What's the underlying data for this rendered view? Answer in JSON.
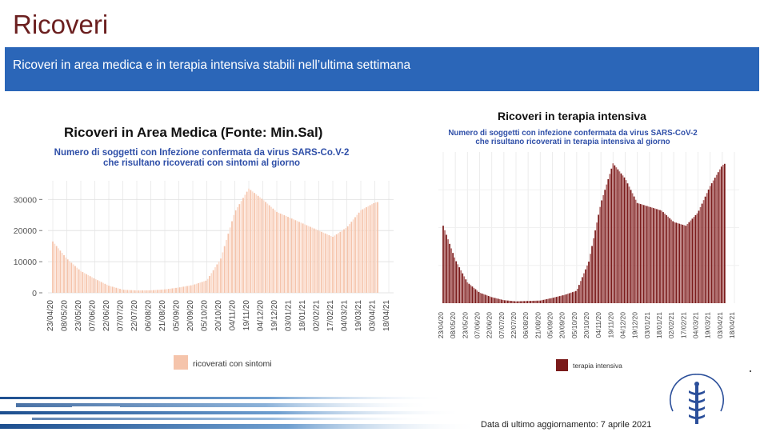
{
  "slide": {
    "title": "Ricoveri",
    "banner": "Ricoveri in area medica e in terapia intensiva stabili nell’ultima settimana",
    "footer": "Data di ultimo aggiornamento: 7 aprile 2021",
    "colors": {
      "title": "#6b1f1f",
      "banner": "#2b66b8",
      "medica": "#f5c4ab",
      "intensiva": "#7a1a1a",
      "subtitle": "#2f4fa8"
    }
  },
  "chart_data": [
    {
      "type": "bar",
      "title": "Ricoveri in Area Medica (Fonte: Min.Sal)",
      "subtitle": [
        "Numero di soggetti con Infezione confermata da virus SARS-Co.V-2",
        "che risultano ricoverati con sintomi al giorno"
      ],
      "xlabel": "",
      "ylabel": "",
      "ylim": [
        0,
        36000
      ],
      "yticks": [
        0,
        10000,
        20000,
        30000
      ],
      "ytick_labels": [
        "0",
        "10000",
        "20000",
        "30000"
      ],
      "xtick_labels": [
        "23/04/20",
        "08/05/20",
        "23/05/20",
        "07/06/20",
        "22/06/20",
        "07/07/20",
        "22/07/20",
        "06/08/20",
        "21/08/20",
        "05/09/20",
        "20/09/20",
        "05/10/20",
        "20/10/20",
        "04/11/20",
        "19/11/20",
        "04/12/20",
        "19/12/20",
        "03/01/21",
        "18/01/21",
        "02/02/21",
        "17/02/21",
        "04/03/21",
        "19/03/21",
        "03/04/21",
        "18/04/21"
      ],
      "x_range": [
        "2020-04-23",
        "2021-04-18"
      ],
      "series": [
        {
          "name": "ricoverati con sintomi",
          "color": "#f5c4ab",
          "dates": [
            "2020-04-23",
            "2020-05-08",
            "2020-05-23",
            "2020-06-07",
            "2020-06-22",
            "2020-07-07",
            "2020-07-22",
            "2020-08-06",
            "2020-08-21",
            "2020-09-05",
            "2020-09-20",
            "2020-10-05",
            "2020-10-20",
            "2020-11-04",
            "2020-11-19",
            "2020-12-04",
            "2020-12-19",
            "2021-01-03",
            "2021-01-18",
            "2021-02-02",
            "2021-02-17",
            "2021-03-04",
            "2021-03-19",
            "2021-04-03",
            "2021-04-07"
          ],
          "values": [
            16500,
            11000,
            7000,
            4500,
            2300,
            1000,
            750,
            800,
            1100,
            1700,
            2500,
            4000,
            11000,
            26000,
            33500,
            30000,
            26000,
            24000,
            22000,
            20000,
            18000,
            21000,
            26500,
            29000,
            29200
          ]
        }
      ],
      "legend": "bottom"
    },
    {
      "type": "bar",
      "title": "Ricoveri in terapia intensiva",
      "subtitle": [
        "Numero di soggetti con infezione confermata da virus SARS-CoV-2",
        "che risultano ricoverati in terapia intensiva al giorno"
      ],
      "xlabel": "",
      "ylabel": "",
      "ylim": [
        0,
        4000
      ],
      "xtick_labels": [
        "23/04/20",
        "08/05/20",
        "23/05/20",
        "07/06/20",
        "22/06/20",
        "07/07/20",
        "22/07/20",
        "06/08/20",
        "21/08/20",
        "05/09/20",
        "20/09/20",
        "05/10/20",
        "20/10/20",
        "04/11/20",
        "19/11/20",
        "04/12/20",
        "19/12/20",
        "03/01/21",
        "18/01/21",
        "02/02/21",
        "17/02/21",
        "04/03/21",
        "19/03/21",
        "03/04/21",
        "18/04/21"
      ],
      "x_range": [
        "2020-04-23",
        "2021-04-18"
      ],
      "series": [
        {
          "name": "terapia intensiva",
          "color": "#7a1a1a",
          "dates": [
            "2020-04-23",
            "2020-05-08",
            "2020-05-23",
            "2020-06-07",
            "2020-06-22",
            "2020-07-07",
            "2020-07-22",
            "2020-08-06",
            "2020-08-21",
            "2020-09-05",
            "2020-09-20",
            "2020-10-05",
            "2020-10-20",
            "2020-11-04",
            "2020-11-19",
            "2020-12-04",
            "2020-12-19",
            "2021-01-03",
            "2021-01-18",
            "2021-02-02",
            "2021-02-17",
            "2021-03-04",
            "2021-03-19",
            "2021-04-03",
            "2021-04-07"
          ],
          "values": [
            2050,
            1150,
            550,
            280,
            160,
            80,
            50,
            60,
            70,
            140,
            220,
            330,
            1100,
            2650,
            3700,
            3300,
            2650,
            2550,
            2450,
            2150,
            2050,
            2400,
            3100,
            3650,
            3700
          ]
        }
      ],
      "legend": "bottom"
    }
  ]
}
